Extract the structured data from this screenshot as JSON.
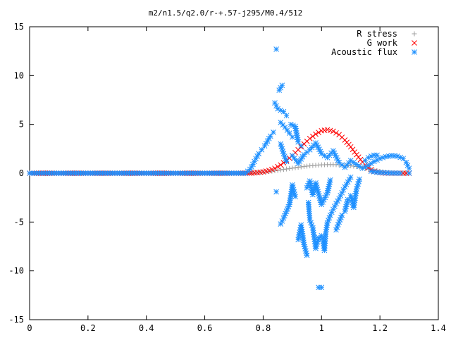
{
  "chart_data": {
    "type": "scatter",
    "title": "m2/n1.5/q2.0/r-+.57-j295/M0.4/512",
    "xlabel": "",
    "ylabel": "",
    "xlim": [
      0,
      1.4
    ],
    "ylim": [
      -15,
      15
    ],
    "x_ticks": [
      0,
      0.2,
      0.4,
      0.6,
      0.8,
      1,
      1.2,
      1.4
    ],
    "x_tick_labels": [
      "0",
      "0.2",
      "0.4",
      "0.6",
      "0.8",
      "1",
      "1.2",
      "1.4"
    ],
    "y_ticks": [
      -15,
      -10,
      -5,
      0,
      5,
      10,
      15
    ],
    "y_tick_labels": [
      "-15",
      "-10",
      "-5",
      "0",
      "5",
      "10",
      "15"
    ],
    "grid": false,
    "legend_position": "top-right",
    "series": [
      {
        "name": "R stress",
        "marker": "plus",
        "color": "#a0a0a0",
        "points": [
          [
            0.0,
            0.0
          ],
          [
            0.1,
            0.0
          ],
          [
            0.2,
            0.0
          ],
          [
            0.3,
            0.0
          ],
          [
            0.4,
            0.0
          ],
          [
            0.5,
            0.0
          ],
          [
            0.6,
            0.0
          ],
          [
            0.7,
            0.0
          ],
          [
            0.76,
            0.0
          ],
          [
            0.78,
            0.04
          ],
          [
            0.8,
            0.1
          ],
          [
            0.82,
            0.17
          ],
          [
            0.84,
            0.25
          ],
          [
            0.86,
            0.34
          ],
          [
            0.88,
            0.43
          ],
          [
            0.9,
            0.52
          ],
          [
            0.92,
            0.61
          ],
          [
            0.94,
            0.69
          ],
          [
            0.96,
            0.76
          ],
          [
            0.98,
            0.82
          ],
          [
            1.0,
            0.86
          ],
          [
            1.02,
            0.88
          ],
          [
            1.04,
            0.88
          ],
          [
            1.06,
            0.86
          ],
          [
            1.08,
            0.82
          ],
          [
            1.1,
            0.76
          ],
          [
            1.12,
            0.68
          ],
          [
            1.14,
            0.56
          ],
          [
            1.16,
            0.42
          ],
          [
            1.18,
            0.3
          ],
          [
            1.2,
            0.18
          ],
          [
            1.22,
            0.1
          ],
          [
            1.24,
            0.04
          ],
          [
            1.26,
            0.01
          ],
          [
            1.28,
            0.0
          ],
          [
            1.3,
            0.0
          ]
        ]
      },
      {
        "name": "G work",
        "marker": "cross",
        "color": "#ff0000",
        "points": [
          [
            0.0,
            0.0
          ],
          [
            0.1,
            0.0
          ],
          [
            0.2,
            0.0
          ],
          [
            0.3,
            0.0
          ],
          [
            0.4,
            0.0
          ],
          [
            0.5,
            0.0
          ],
          [
            0.6,
            0.0
          ],
          [
            0.7,
            0.0
          ],
          [
            0.76,
            0.02
          ],
          [
            0.78,
            0.07
          ],
          [
            0.8,
            0.15
          ],
          [
            0.82,
            0.28
          ],
          [
            0.84,
            0.5
          ],
          [
            0.86,
            0.85
          ],
          [
            0.88,
            1.3
          ],
          [
            0.9,
            1.8
          ],
          [
            0.92,
            2.4
          ],
          [
            0.94,
            3.0
          ],
          [
            0.96,
            3.55
          ],
          [
            0.98,
            4.0
          ],
          [
            1.0,
            4.35
          ],
          [
            1.02,
            4.45
          ],
          [
            1.04,
            4.3
          ],
          [
            1.06,
            3.95
          ],
          [
            1.08,
            3.4
          ],
          [
            1.1,
            2.7
          ],
          [
            1.12,
            1.9
          ],
          [
            1.14,
            1.15
          ],
          [
            1.16,
            0.55
          ],
          [
            1.18,
            0.2
          ],
          [
            1.2,
            0.05
          ],
          [
            1.22,
            0.01
          ],
          [
            1.24,
            0.0
          ],
          [
            1.26,
            0.0
          ],
          [
            1.28,
            0.0
          ],
          [
            1.3,
            0.0
          ]
        ]
      },
      {
        "name": "Acoustic flux",
        "marker": "star",
        "color": "#1e90ff",
        "points": [
          [
            0.0,
            0.0
          ],
          [
            0.05,
            0.0
          ],
          [
            0.1,
            0.0
          ],
          [
            0.15,
            0.0
          ],
          [
            0.2,
            0.0
          ],
          [
            0.25,
            0.0
          ],
          [
            0.3,
            0.0
          ],
          [
            0.35,
            0.0
          ],
          [
            0.4,
            0.0
          ],
          [
            0.45,
            0.0
          ],
          [
            0.5,
            0.0
          ],
          [
            0.55,
            0.0
          ],
          [
            0.6,
            0.0
          ],
          [
            0.65,
            0.0
          ],
          [
            0.7,
            0.0
          ],
          [
            0.74,
            0.0
          ],
          [
            0.755,
            0.4
          ],
          [
            0.765,
            0.9
          ],
          [
            0.775,
            1.5
          ],
          [
            0.785,
            2.0
          ],
          [
            0.795,
            2.4
          ],
          [
            0.805,
            2.8
          ],
          [
            0.815,
            3.3
          ],
          [
            0.825,
            3.8
          ],
          [
            0.835,
            4.2
          ],
          [
            0.845,
            12.7
          ],
          [
            0.855,
            8.5
          ],
          [
            0.865,
            9.0
          ],
          [
            0.84,
            7.2
          ],
          [
            0.85,
            6.6
          ],
          [
            0.87,
            6.3
          ],
          [
            0.88,
            5.9
          ],
          [
            0.86,
            5.2
          ],
          [
            0.875,
            4.7
          ],
          [
            0.89,
            4.1
          ],
          [
            0.9,
            3.7
          ],
          [
            0.895,
            5.0
          ],
          [
            0.91,
            4.8
          ],
          [
            0.92,
            3.2
          ],
          [
            0.93,
            2.8
          ],
          [
            0.86,
            3.0
          ],
          [
            0.87,
            2.0
          ],
          [
            0.88,
            1.2
          ],
          [
            0.845,
            -1.9
          ],
          [
            0.86,
            -5.2
          ],
          [
            0.87,
            -4.6
          ],
          [
            0.89,
            -3.2
          ],
          [
            0.9,
            -1.2
          ],
          [
            0.91,
            -2.4
          ],
          [
            0.92,
            -6.8
          ],
          [
            0.93,
            -5.3
          ],
          [
            0.94,
            -7.3
          ],
          [
            0.95,
            -8.4
          ],
          [
            0.955,
            -3.0
          ],
          [
            0.96,
            -4.8
          ],
          [
            0.97,
            -5.6
          ],
          [
            0.98,
            -7.7
          ],
          [
            0.99,
            -6.6
          ],
          [
            0.99,
            -11.7
          ],
          [
            1.0,
            -11.7
          ],
          [
            1.0,
            -6.4
          ],
          [
            1.005,
            -7.0
          ],
          [
            1.01,
            -7.9
          ],
          [
            1.015,
            -6.0
          ],
          [
            1.02,
            -5.1
          ],
          [
            1.03,
            -4.3
          ],
          [
            1.04,
            -3.7
          ],
          [
            1.05,
            -3.1
          ],
          [
            1.06,
            -2.6
          ],
          [
            1.07,
            -2.0
          ],
          [
            1.08,
            -1.4
          ],
          [
            1.09,
            -0.9
          ],
          [
            1.1,
            -0.4
          ],
          [
            0.95,
            -1.5
          ],
          [
            0.96,
            -0.8
          ],
          [
            0.97,
            -2.2
          ],
          [
            0.98,
            -1.0
          ],
          [
            1.0,
            -3.2
          ],
          [
            1.02,
            -2.0
          ],
          [
            1.03,
            -0.7
          ],
          [
            1.05,
            -5.8
          ],
          [
            1.06,
            -5.0
          ],
          [
            1.07,
            -4.3
          ],
          [
            1.08,
            -3.9
          ],
          [
            1.09,
            -2.7
          ],
          [
            1.1,
            -2.3
          ],
          [
            1.11,
            -3.5
          ],
          [
            1.12,
            -1.6
          ],
          [
            1.13,
            -0.6
          ],
          [
            0.9,
            1.8
          ],
          [
            0.92,
            1.0
          ],
          [
            0.94,
            1.9
          ],
          [
            0.96,
            2.4
          ],
          [
            0.98,
            3.1
          ],
          [
            1.0,
            2.0
          ],
          [
            1.02,
            1.6
          ],
          [
            1.04,
            2.3
          ],
          [
            1.06,
            1.1
          ],
          [
            1.08,
            0.6
          ],
          [
            1.1,
            1.3
          ],
          [
            1.12,
            0.9
          ],
          [
            1.14,
            0.5
          ],
          [
            1.16,
            0.8
          ],
          [
            1.18,
            1.2
          ],
          [
            1.2,
            1.5
          ],
          [
            1.22,
            1.7
          ],
          [
            1.24,
            1.8
          ],
          [
            1.26,
            1.75
          ],
          [
            1.28,
            1.5
          ],
          [
            1.29,
            1.1
          ],
          [
            1.3,
            0.5
          ],
          [
            1.3,
            0.0
          ],
          [
            1.17,
            0.2
          ],
          [
            1.19,
            0.1
          ],
          [
            1.21,
            0.05
          ],
          [
            1.23,
            0.02
          ],
          [
            1.25,
            0.01
          ],
          [
            1.27,
            0.0
          ],
          [
            1.15,
            1.3
          ],
          [
            1.16,
            1.6
          ],
          [
            1.17,
            1.75
          ],
          [
            1.18,
            1.85
          ],
          [
            1.19,
            1.85
          ]
        ]
      }
    ]
  }
}
